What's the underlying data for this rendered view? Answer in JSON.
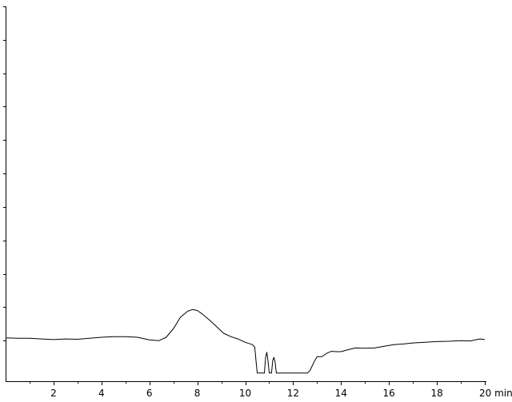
{
  "chart_data": {
    "type": "line",
    "title": "",
    "xlabel": "",
    "ylabel": "",
    "xlim": [
      0,
      20
    ],
    "ylim": [
      -1,
      10
    ],
    "grid": false,
    "x_ticks": [
      {
        "value": 2,
        "label": "2"
      },
      {
        "value": 4,
        "label": "4"
      },
      {
        "value": 6,
        "label": "6"
      },
      {
        "value": 8,
        "label": "8"
      },
      {
        "value": 10,
        "label": "10"
      },
      {
        "value": 12,
        "label": "12"
      },
      {
        "value": 14,
        "label": "14"
      },
      {
        "value": 16,
        "label": "16"
      },
      {
        "value": 18,
        "label": "18"
      },
      {
        "value": 20,
        "label": "20 min"
      }
    ],
    "x_minor_ticks": [
      1,
      3,
      5,
      7,
      9,
      11,
      13,
      15,
      17,
      19
    ],
    "y_ticks": [
      0,
      1,
      2,
      3,
      4,
      5,
      6,
      7,
      8,
      9,
      10
    ],
    "series": [
      {
        "x": [
          0.0,
          0.5,
          1.0,
          1.5,
          2.0,
          2.5,
          3.0,
          3.5,
          4.0,
          4.5,
          5.0,
          5.5,
          6.0,
          6.4,
          6.7,
          7.0,
          7.3,
          7.6,
          7.8,
          8.0,
          8.2,
          8.5,
          8.8,
          9.1,
          9.4,
          9.7,
          10.0,
          10.3,
          10.4,
          10.45,
          10.5,
          10.6,
          10.65,
          10.7,
          10.8,
          10.85,
          10.9,
          10.95,
          11.0,
          11.05,
          11.1,
          11.15,
          11.2,
          11.25,
          11.3,
          11.4,
          11.8,
          12.2,
          12.6,
          12.7,
          12.8,
          12.9,
          13.0,
          13.2,
          13.4,
          13.6,
          13.8,
          14.0,
          14.3,
          14.6,
          15.0,
          15.4,
          15.8,
          16.2,
          16.6,
          17.0,
          17.5,
          18.0,
          18.5,
          19.0,
          19.4,
          19.6,
          19.8,
          20.0
        ],
        "y": [
          0.08,
          0.07,
          0.07,
          0.05,
          0.03,
          0.05,
          0.04,
          0.07,
          0.1,
          0.12,
          0.12,
          0.1,
          0.02,
          0.0,
          0.1,
          0.35,
          0.7,
          0.88,
          0.93,
          0.9,
          0.8,
          0.62,
          0.42,
          0.22,
          0.12,
          0.05,
          -0.05,
          -0.12,
          -0.2,
          -0.6,
          -0.97,
          -0.97,
          -0.97,
          -0.97,
          -0.97,
          -0.5,
          -0.35,
          -0.6,
          -0.97,
          -0.97,
          -0.97,
          -0.6,
          -0.5,
          -0.65,
          -0.97,
          -0.97,
          -0.97,
          -0.97,
          -0.97,
          -0.9,
          -0.75,
          -0.6,
          -0.48,
          -0.48,
          -0.38,
          -0.32,
          -0.33,
          -0.33,
          -0.27,
          -0.22,
          -0.23,
          -0.22,
          -0.17,
          -0.12,
          -0.1,
          -0.07,
          -0.05,
          -0.03,
          -0.02,
          0.0,
          -0.01,
          0.02,
          0.05,
          0.03
        ]
      }
    ]
  }
}
